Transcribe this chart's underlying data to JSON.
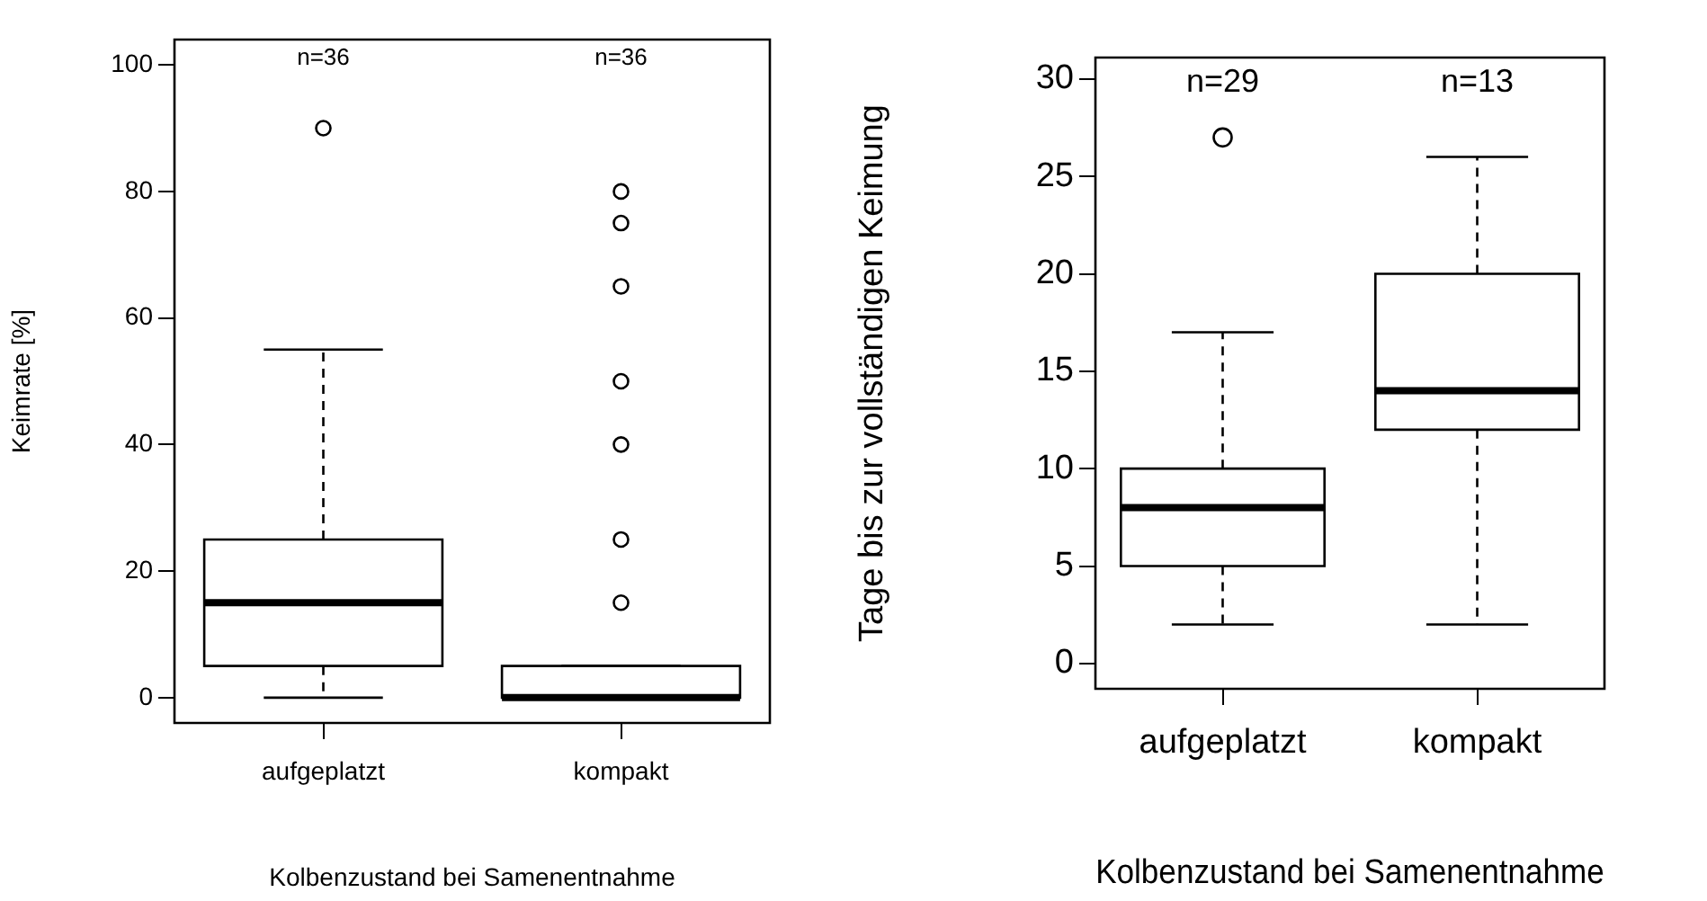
{
  "chart_data": [
    {
      "type": "box",
      "categories": [
        "aufgeplatzt",
        "kompakt"
      ],
      "ylabel": "Keimrate [%]",
      "xlabel": "Kolbenzustand bei Samenentnahme",
      "ylim": [
        -4,
        104
      ],
      "yticks": [
        0,
        20,
        40,
        60,
        80,
        100
      ],
      "boxes": [
        {
          "low": 0,
          "q1": 5,
          "median": 15,
          "q3": 25,
          "high": 55,
          "outliers": [
            90
          ]
        },
        {
          "low": 0,
          "q1": 0,
          "median": 0,
          "q3": 5,
          "high": 5,
          "outliers": [
            15,
            25,
            40,
            50,
            65,
            75,
            80
          ]
        }
      ],
      "annotations": [
        "n=36",
        "n=36"
      ]
    },
    {
      "type": "box",
      "categories": [
        "aufgeplatzt",
        "kompakt"
      ],
      "ylabel": "Tage bis zur vollständigen Keimung",
      "xlabel": "Kolbenzustand bei Samenentnahme",
      "ylim": [
        -1.3,
        31.1
      ],
      "yticks": [
        0,
        5,
        10,
        15,
        20,
        25,
        30
      ],
      "boxes": [
        {
          "low": 2,
          "q1": 5,
          "median": 8,
          "q3": 10,
          "high": 17,
          "outliers": [
            27
          ]
        },
        {
          "low": 2,
          "q1": 12,
          "median": 14,
          "q3": 20,
          "high": 26
        }
      ],
      "annotations": [
        "n=29",
        "n=13"
      ]
    }
  ]
}
